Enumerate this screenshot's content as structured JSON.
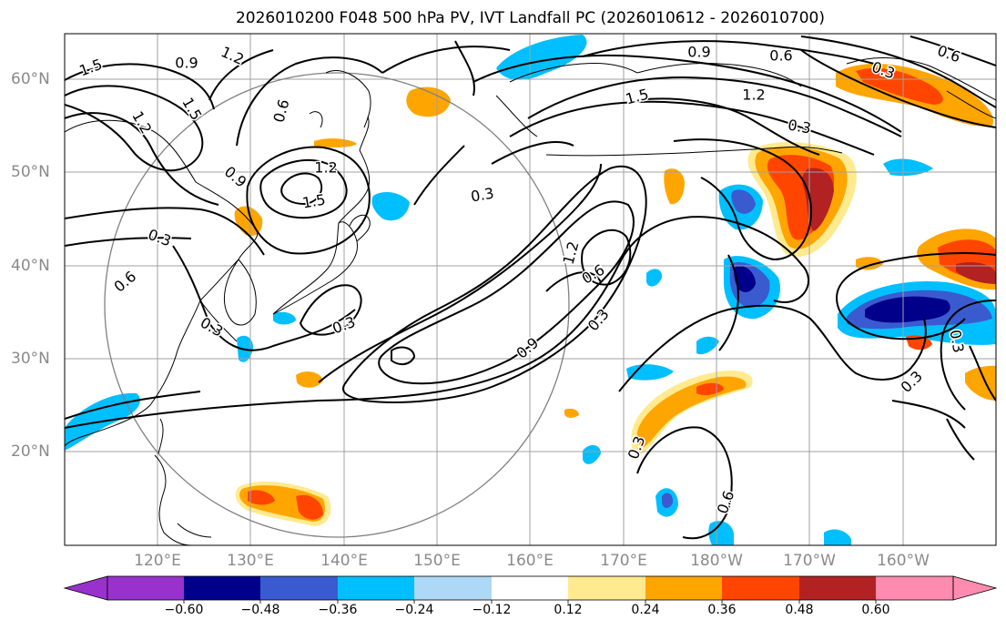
{
  "title": "2026010200 F048 500 hPa PV, IVT Landfall PC (2026010612 - 2026010700)",
  "map": {
    "lat_labels": [
      "60°N",
      "50°N",
      "40°N",
      "30°N",
      "20°N"
    ],
    "lon_labels": [
      "120°E",
      "130°E",
      "140°E",
      "150°E",
      "160°E",
      "170°E",
      "180°W",
      "170°W",
      "160°W"
    ],
    "contour_labels": [
      "1.5",
      "0.9",
      "1.2",
      "1.5",
      "1.2",
      "0.6",
      "0.9",
      "0.3",
      "0.6",
      "1.2",
      "1.5",
      "0.3",
      "0.3",
      "0.3",
      "0.9",
      "1.2",
      "0.6",
      "1.5",
      "1.2",
      "0.3",
      "0.9",
      "0.6",
      "0.3",
      "0.6",
      "0.3",
      "0.3",
      "0.6",
      "0.3",
      "0.3"
    ]
  },
  "colorbar": {
    "ticks": [
      "−0.60",
      "−0.48",
      "−0.36",
      "−0.24",
      "−0.12",
      "0.12",
      "0.24",
      "0.36",
      "0.48",
      "0.60"
    ],
    "colors": {
      "under": "#9932cc",
      "levels": [
        "#00008b",
        "#3a5bcf",
        "#00bfff",
        "#add8f6",
        "#ffffff",
        "#ffea8f",
        "#ffa500",
        "#ff4500",
        "#b22222"
      ],
      "over": "#ff8cb0"
    }
  }
}
